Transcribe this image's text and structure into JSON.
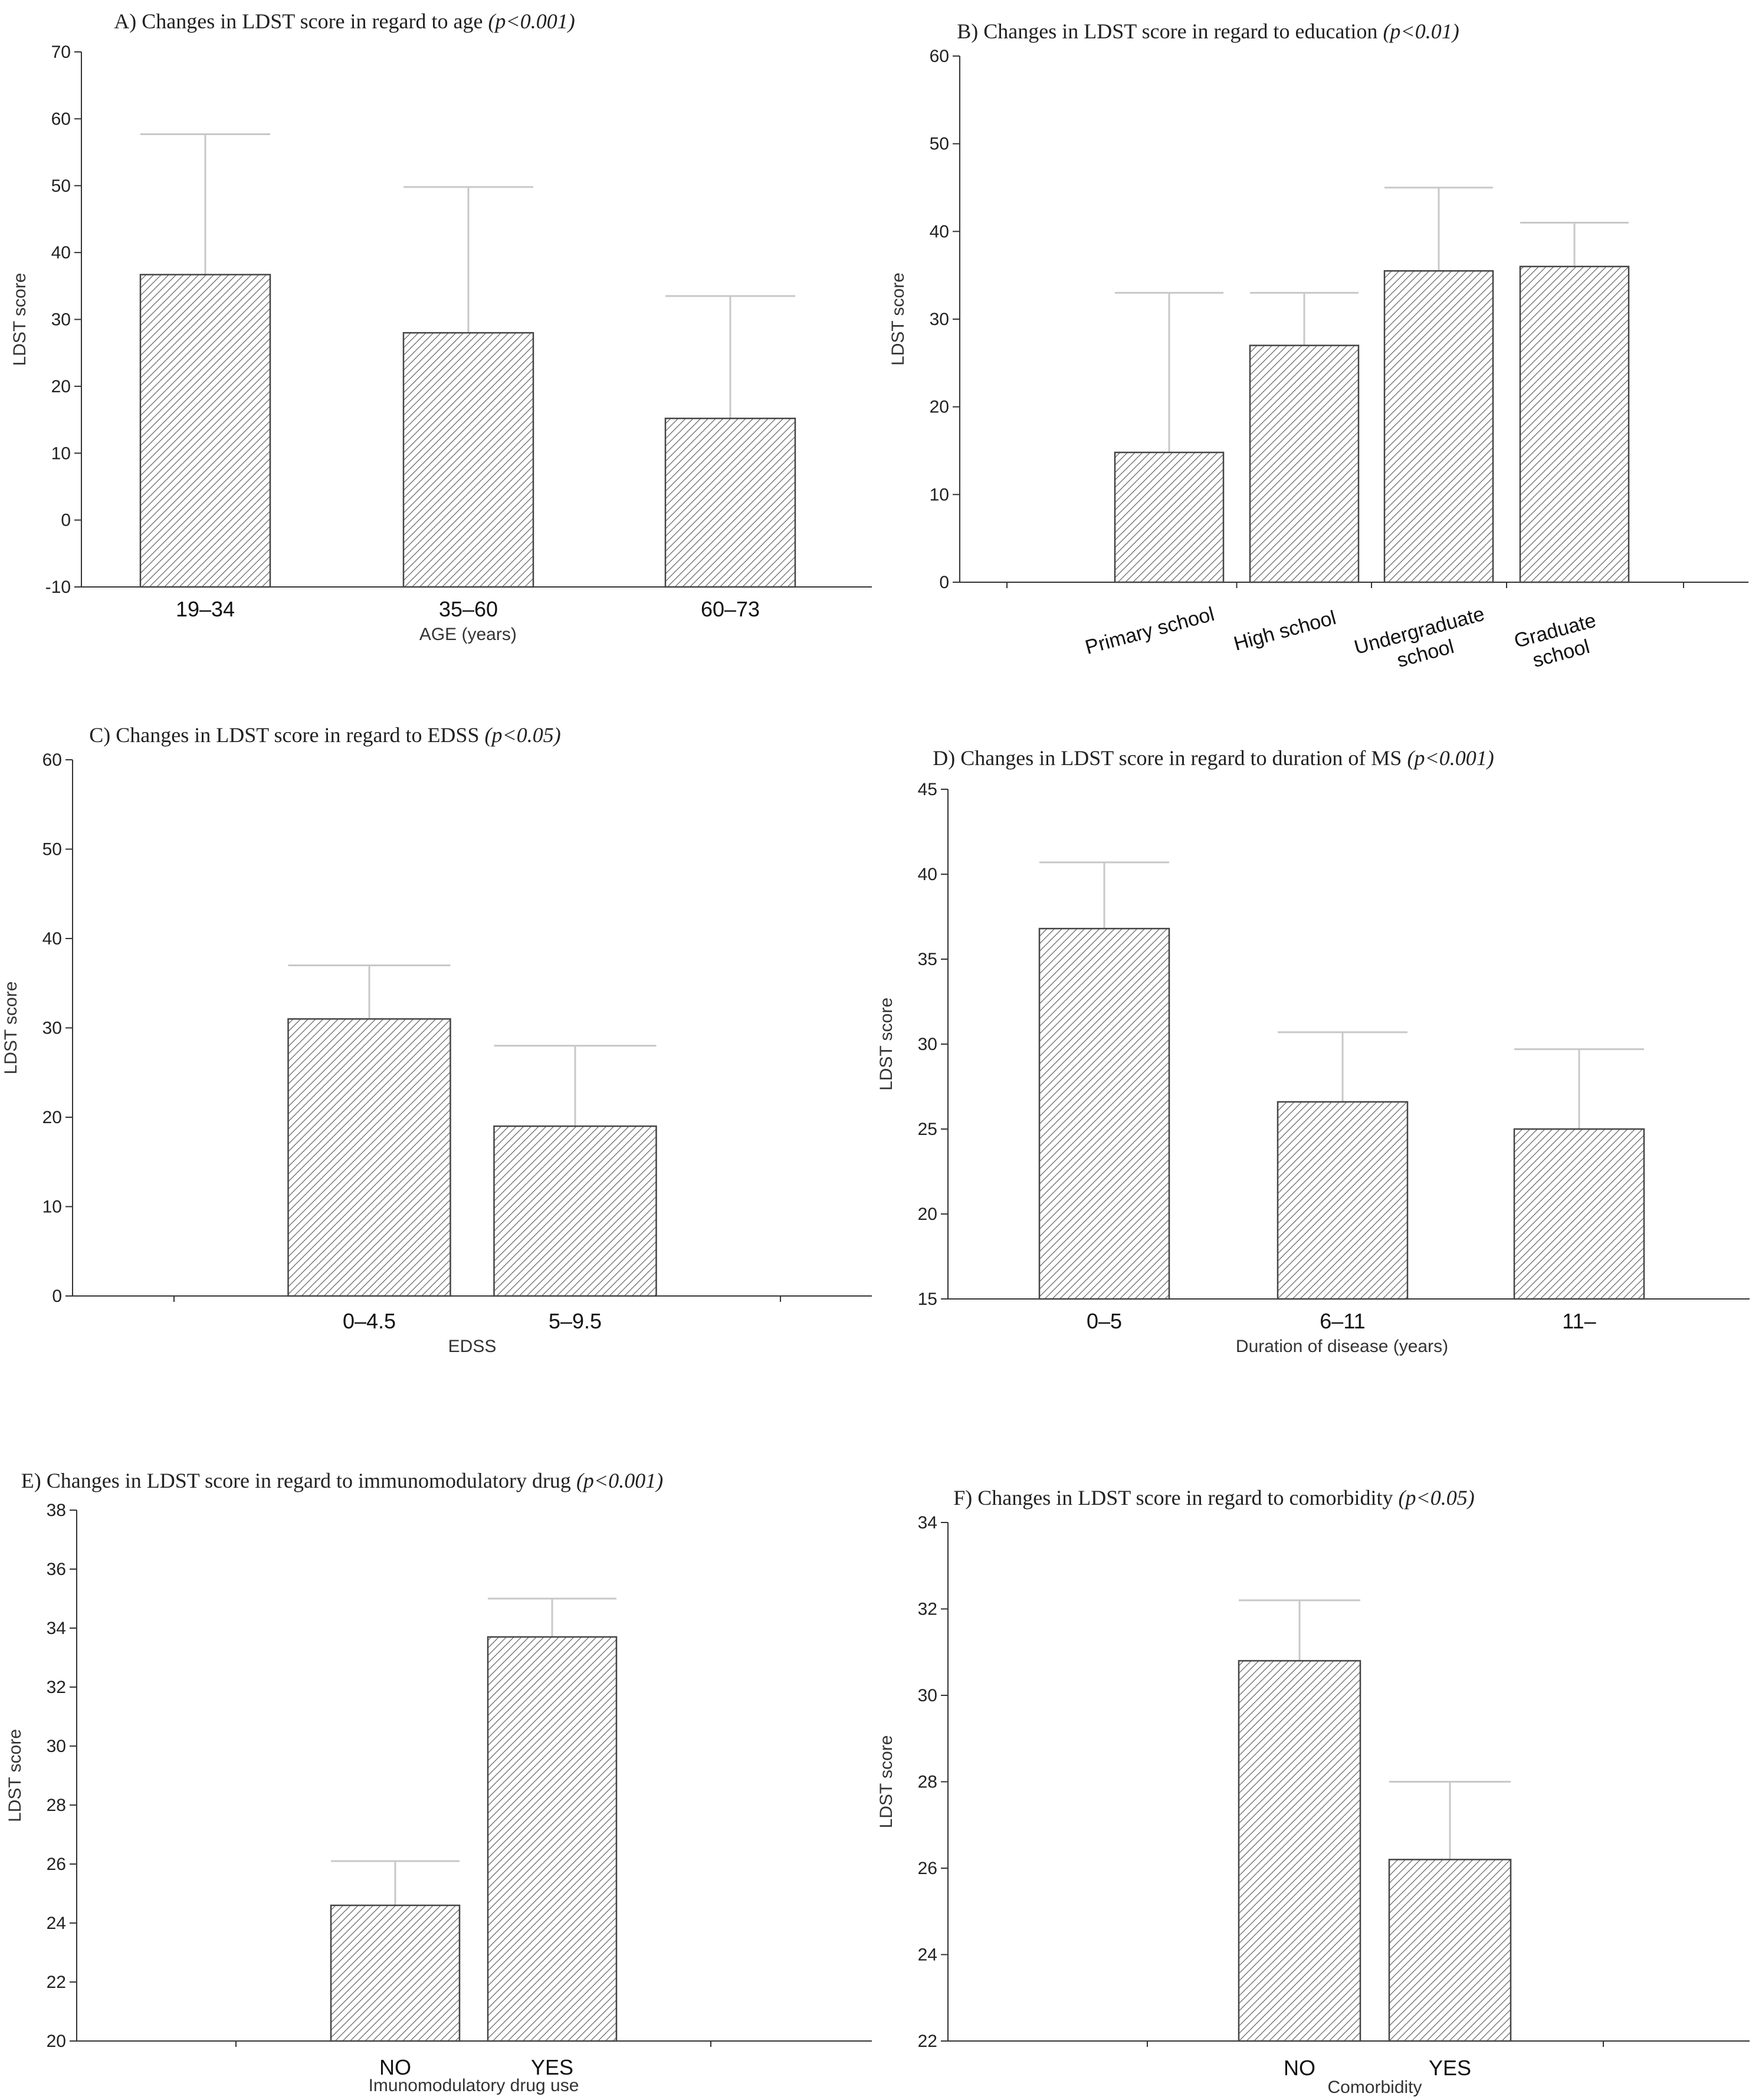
{
  "chart_data": [
    {
      "id": "A",
      "type": "bar",
      "title": "A) Changes in LDST score in regard to age ",
      "p_value": "(p<0.001)",
      "xlabel": "AGE (years)",
      "ylabel": "LDST score",
      "ylim": [
        -10,
        70
      ],
      "yticks": [
        -10,
        0,
        10,
        20,
        30,
        40,
        50,
        60,
        70
      ],
      "categories": [
        "19–34",
        "35–60",
        "60–73"
      ],
      "values": [
        36.7,
        28,
        15.2
      ],
      "error_upper": [
        57.7,
        49.8,
        33.5
      ]
    },
    {
      "id": "B",
      "type": "bar",
      "title": "B) Changes in LDST score in regard to education ",
      "p_value": "(p<0.01)",
      "xlabel": "",
      "ylabel": "LDST score",
      "ylim": [
        0,
        60
      ],
      "yticks": [
        0,
        10,
        20,
        30,
        40,
        50,
        60
      ],
      "categories": [
        "Primary school",
        "High school",
        "Undergraduate school",
        "Graduate school"
      ],
      "values": [
        14.8,
        27,
        35.5,
        36
      ],
      "error_upper": [
        33,
        33,
        45,
        41
      ]
    },
    {
      "id": "C",
      "type": "bar",
      "title": "C) Changes in LDST score in regard to EDSS ",
      "p_value": "(p<0.05)",
      "xlabel": "EDSS",
      "ylabel": "LDST score",
      "ylim": [
        0,
        60
      ],
      "yticks": [
        0,
        10,
        20,
        30,
        40,
        50,
        60
      ],
      "categories": [
        "0–4.5",
        "5–9.5"
      ],
      "values": [
        31,
        19
      ],
      "error_upper": [
        37,
        28
      ]
    },
    {
      "id": "D",
      "type": "bar",
      "title": "D) Changes in LDST score in regard to duration of MS ",
      "p_value": "(p<0.001)",
      "xlabel": "Duration of disease (years)",
      "ylabel": "LDST score",
      "ylim": [
        15,
        45
      ],
      "yticks": [
        15,
        20,
        25,
        30,
        35,
        40,
        45
      ],
      "categories": [
        "0–5",
        "6–11",
        "11–"
      ],
      "values": [
        36.8,
        26.6,
        25
      ],
      "error_upper": [
        40.7,
        30.7,
        29.7
      ]
    },
    {
      "id": "E",
      "type": "bar",
      "title": "E) Changes in LDST score in regard to immunomodulatory drug ",
      "p_value": "(p<0.001)",
      "xlabel": "Imunomodulatory drug use",
      "ylabel": "LDST score",
      "ylim": [
        20,
        38
      ],
      "yticks": [
        20,
        22,
        24,
        26,
        28,
        30,
        32,
        34,
        36,
        38
      ],
      "categories": [
        "NO",
        "YES"
      ],
      "values": [
        24.6,
        33.7
      ],
      "error_upper": [
        26.1,
        35
      ]
    },
    {
      "id": "F",
      "type": "bar",
      "title": "F) Changes in LDST score in regard to comorbidity ",
      "p_value": "(p<0.05)",
      "xlabel": "Comorbidity",
      "ylabel": "LDST score",
      "ylim": [
        22,
        34
      ],
      "yticks": [
        22,
        24,
        26,
        28,
        30,
        32,
        34
      ],
      "categories": [
        "NO",
        "YES"
      ],
      "values": [
        30.8,
        26.2
      ],
      "error_upper": [
        32.2,
        28
      ]
    }
  ]
}
